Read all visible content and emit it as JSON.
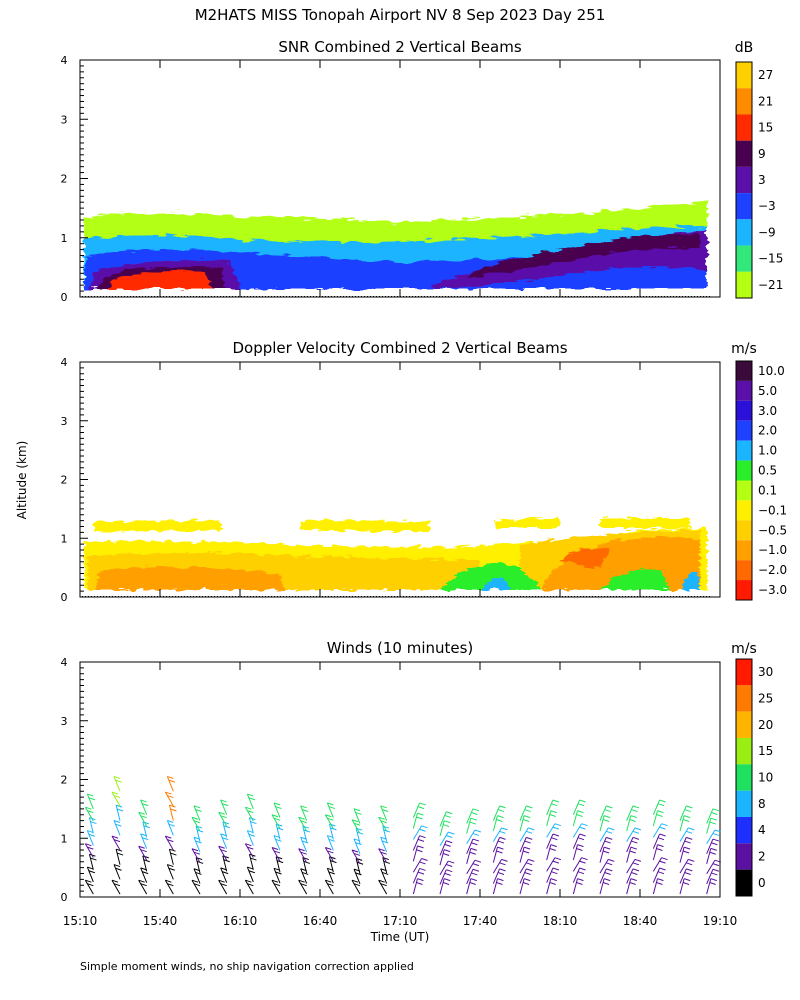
{
  "figure": {
    "title": "M2HATS MISS Tonopah Airport NV   8 Sep 2023 Day 251",
    "ylabel": "Altitude (km)",
    "xlabel": "Time (UT)",
    "footnote": "Simple moment winds, no ship navigation correction applied"
  },
  "chart_data": [
    {
      "type": "heatmap",
      "title": "SNR Combined 2 Vertical Beams",
      "xlabel": "Time (UT)",
      "ylabel": "Altitude (km)",
      "xlim": [
        "15:10",
        "19:10"
      ],
      "ylim": [
        0,
        4
      ],
      "y_ticks": [
        "0",
        "1",
        "2",
        "3",
        "4"
      ],
      "colorbar": {
        "unit": "dB",
        "labels": [
          "27",
          "21",
          "15",
          "9",
          "3",
          "−3",
          "−9",
          "−15",
          "−21"
        ],
        "colors": [
          "#ffd000",
          "#ff8c00",
          "#ff2a00",
          "#4a0050",
          "#5a10a8",
          "#1e40ff",
          "#1ab4ff",
          "#32e87a",
          "#b4ff14"
        ]
      },
      "features": [
        {
          "time": "15:10",
          "top_km": 0.9,
          "core_km": 0.4
        },
        {
          "time": "16:10",
          "top_km": 0.9,
          "core_km": 0.2
        },
        {
          "time": "17:10",
          "top_km": 0.8,
          "core_km": 0.0
        },
        {
          "time": "18:10",
          "top_km": 1.0,
          "core_km": 0.8
        },
        {
          "time": "19:00",
          "top_km": 1.1,
          "core_km": 1.0
        }
      ]
    },
    {
      "type": "heatmap",
      "title": "Doppler Velocity Combined 2 Vertical Beams",
      "xlabel": "Time (UT)",
      "ylabel": "Altitude (km)",
      "xlim": [
        "15:10",
        "19:10"
      ],
      "ylim": [
        0,
        4
      ],
      "y_ticks": [
        "0",
        "1",
        "2",
        "3",
        "4"
      ],
      "colorbar": {
        "unit": "m/s",
        "labels": [
          "10.0",
          "5.0",
          "3.0",
          "2.0",
          "1.0",
          "0.5",
          "0.1",
          "−0.1",
          "−0.5",
          "−1.0",
          "−2.0",
          "−3.0"
        ],
        "colors": [
          "#3a0a3a",
          "#5a10a8",
          "#2a10d8",
          "#1e40ff",
          "#1ab4ff",
          "#2aee2a",
          "#b4ff14",
          "#fff000",
          "#ffd000",
          "#ffa000",
          "#ff6a00",
          "#ff1a00"
        ]
      },
      "features": [
        {
          "time": "15:10",
          "top_km": 0.9
        },
        {
          "time": "17:10",
          "top_km": 0.8
        },
        {
          "time": "18:10",
          "top_km": 1.0
        },
        {
          "time": "19:00",
          "top_km": 1.1
        }
      ]
    },
    {
      "type": "scatter",
      "title": "Winds (10 minutes)",
      "xlabel": "Time (UT)",
      "ylabel": "Altitude (km)",
      "xlim": [
        "15:10",
        "19:10"
      ],
      "ylim": [
        0,
        4
      ],
      "x_ticks": [
        "15:10",
        "15:40",
        "16:10",
        "16:40",
        "17:10",
        "17:40",
        "18:10",
        "18:40",
        "19:10"
      ],
      "y_ticks": [
        "0",
        "1",
        "2",
        "3",
        "4"
      ],
      "colorbar": {
        "unit": "m/s",
        "labels": [
          "30",
          "25",
          "20",
          "15",
          "10",
          "8",
          "4",
          "2",
          "0"
        ],
        "colors": [
          "#ff1a00",
          "#ff7a00",
          "#ffb400",
          "#9aee14",
          "#20e060",
          "#1ab4ff",
          "#1e30ff",
          "#5a10a0",
          "#000000"
        ]
      },
      "profiles": [
        {
          "time": "15:15",
          "top_km": 1.5
        },
        {
          "time": "15:25",
          "top_km": 1.8
        },
        {
          "time": "15:35",
          "top_km": 1.4
        },
        {
          "time": "15:45",
          "top_km": 1.8
        },
        {
          "time": "15:55",
          "top_km": 1.3
        },
        {
          "time": "16:05",
          "top_km": 1.4
        },
        {
          "time": "16:15",
          "top_km": 1.5
        },
        {
          "time": "16:25",
          "top_km": 1.35
        },
        {
          "time": "16:35",
          "top_km": 1.3
        },
        {
          "time": "16:45",
          "top_km": 1.35
        },
        {
          "time": "16:55",
          "top_km": 1.25
        },
        {
          "time": "17:05",
          "top_km": 1.3
        },
        {
          "time": "17:15",
          "top_km": 1.35
        },
        {
          "time": "17:25",
          "top_km": 1.2
        },
        {
          "time": "17:35",
          "top_km": 1.25
        },
        {
          "time": "17:45",
          "top_km": 1.3
        },
        {
          "time": "17:55",
          "top_km": 1.3
        },
        {
          "time": "18:05",
          "top_km": 1.4
        },
        {
          "time": "18:15",
          "top_km": 1.4
        },
        {
          "time": "18:25",
          "top_km": 1.3
        },
        {
          "time": "18:35",
          "top_km": 1.3
        },
        {
          "time": "18:45",
          "top_km": 1.4
        },
        {
          "time": "18:55",
          "top_km": 1.3
        },
        {
          "time": "19:05",
          "top_km": 1.25
        }
      ]
    }
  ]
}
